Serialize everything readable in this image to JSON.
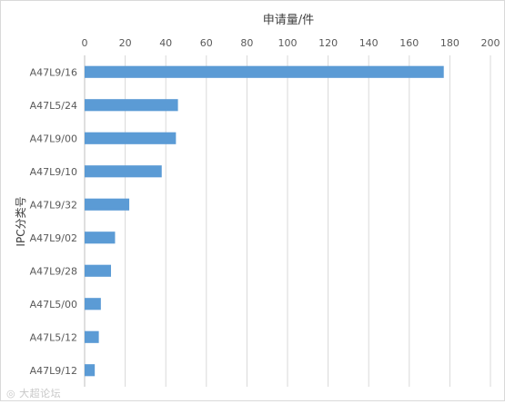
{
  "chart_data": {
    "type": "bar",
    "orientation": "horizontal",
    "xlabel": "申请量/件",
    "ylabel": "IPC分类号",
    "xlim": [
      0,
      200
    ],
    "xticks": [
      0,
      20,
      40,
      60,
      80,
      100,
      120,
      140,
      160,
      180,
      200
    ],
    "x_axis_position": "top",
    "grid": true,
    "bar_color": "#5b9bd5",
    "categories": [
      "A47L9/16",
      "A47L5/24",
      "A47L9/00",
      "A47L9/10",
      "A47L9/32",
      "A47L9/02",
      "A47L9/28",
      "A47L5/00",
      "A47L5/12",
      "A47L9/12"
    ],
    "values": [
      177,
      46,
      45,
      38,
      22,
      15,
      13,
      8,
      7,
      5
    ]
  },
  "watermark": {
    "icon": "weibo-icon",
    "text": "大超论坛"
  }
}
